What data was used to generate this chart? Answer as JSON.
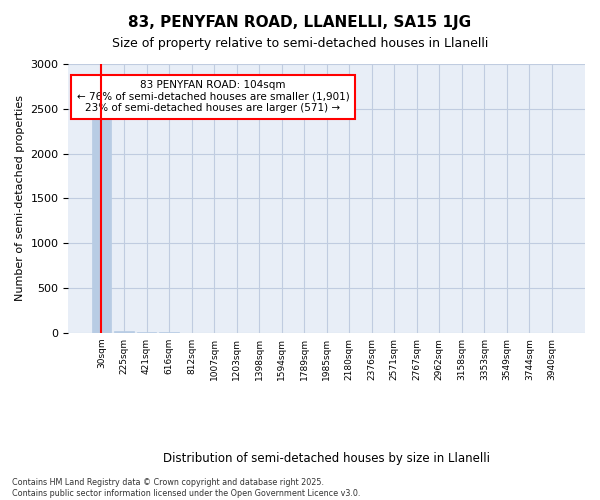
{
  "title": "83, PENYFAN ROAD, LLANELLI, SA15 1JG",
  "subtitle": "Size of property relative to semi-detached houses in Llanelli",
  "xlabel": "Distribution of semi-detached houses by size in Llanelli",
  "ylabel": "Number of semi-detached properties",
  "footnote": "Contains HM Land Registry data © Crown copyright and database right 2025.\nContains public sector information licensed under the Open Government Licence v3.0.",
  "property_label": "83 PENYFAN ROAD: 104sqm",
  "annotation_line1": "← 76% of semi-detached houses are smaller (1,901)",
  "annotation_line2": "23% of semi-detached houses are larger (571) →",
  "bar_color": "#b8cce4",
  "ylim": [
    0,
    3000
  ],
  "yticks": [
    0,
    500,
    1000,
    1500,
    2000,
    2500,
    3000
  ],
  "bins": [
    "30sqm",
    "225sqm",
    "421sqm",
    "616sqm",
    "812sqm",
    "1007sqm",
    "1203sqm",
    "1398sqm",
    "1594sqm",
    "1789sqm",
    "1985sqm",
    "2180sqm",
    "2376sqm",
    "2571sqm",
    "2767sqm",
    "2962sqm",
    "3158sqm",
    "3353sqm",
    "3549sqm",
    "3744sqm",
    "3940sqm"
  ],
  "bar_heights": [
    2540,
    15,
    8,
    4,
    2,
    1,
    1,
    1,
    0,
    0,
    0,
    0,
    0,
    0,
    0,
    0,
    0,
    0,
    0,
    0,
    0
  ],
  "property_bin_index": 0,
  "background_color": "#ffffff",
  "axes_bg_color": "#e8eef7",
  "grid_color": "#c0cce0"
}
